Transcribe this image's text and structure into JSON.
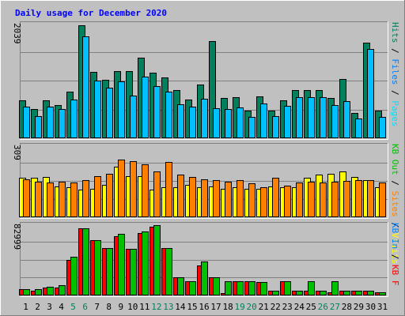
{
  "window": {
    "title": "Daily usage for December 2020"
  },
  "colors": {
    "bg": "#c0c0c0",
    "title": "#0000ff",
    "hits": "#00805c",
    "files": "#00c0ff",
    "pages": "#00e0ff",
    "visits": "#ffff00",
    "sites": "#ff8000",
    "kb_in": "#0080ff",
    "kb_out": "#00c000",
    "kb_f": "#ff0000",
    "day_weekday": "#000000",
    "day_weekend": "#00805c"
  },
  "chart_data": [
    {
      "type": "bar",
      "panel": "hits_files_pages",
      "max_label": "2039",
      "ylim": [
        0,
        2039
      ],
      "right_labels": [
        {
          "text": "Pages",
          "color": "#00e0ff"
        },
        {
          "text": " / ",
          "color": "#000000"
        },
        {
          "text": "Files",
          "color": "#0080ff"
        },
        {
          "text": " / ",
          "color": "#000000"
        },
        {
          "text": "Hits",
          "color": "#00805c"
        }
      ],
      "categories": [
        "1",
        "2",
        "3",
        "4",
        "5",
        "6",
        "7",
        "8",
        "9",
        "10",
        "11",
        "12",
        "13",
        "14",
        "15",
        "16",
        "17",
        "18",
        "19",
        "20",
        "21",
        "22",
        "23",
        "24",
        "25",
        "26",
        "27",
        "28",
        "29",
        "30",
        "31"
      ],
      "series": [
        {
          "name": "Hits",
          "color": "#00805c",
          "values": [
            680,
            520,
            680,
            600,
            830,
            2020,
            1190,
            1050,
            1200,
            1200,
            1450,
            1170,
            1090,
            860,
            700,
            960,
            1740,
            720,
            740,
            500,
            750,
            500,
            680,
            860,
            870,
            860,
            720,
            1060,
            460,
            1720,
            500
          ]
        },
        {
          "name": "Files",
          "color": "#00c0ff",
          "values": [
            560,
            400,
            560,
            530,
            690,
            1820,
            1040,
            900,
            1020,
            770,
            1110,
            940,
            840,
            610,
            570,
            710,
            540,
            530,
            550,
            380,
            630,
            400,
            580,
            730,
            740,
            740,
            590,
            660,
            350,
            1600,
            380
          ]
        }
      ]
    },
    {
      "type": "bar",
      "panel": "visits_sites",
      "max_label": "309",
      "ylim": [
        0,
        309
      ],
      "right_labels": [
        {
          "text": "Visits",
          "color": "#ffff00"
        },
        {
          "text": " / ",
          "color": "#000000"
        },
        {
          "text": "Sites",
          "color": "#ff8000"
        },
        {
          "text": " / ",
          "color": "#000000"
        },
        {
          "text": "KB Out",
          "color": "#00c000"
        }
      ],
      "categories": [
        "1",
        "2",
        "3",
        "4",
        "5",
        "6",
        "7",
        "8",
        "9",
        "10",
        "11",
        "12",
        "13",
        "14",
        "15",
        "16",
        "17",
        "18",
        "19",
        "20",
        "21",
        "22",
        "23",
        "24",
        "25",
        "26",
        "27",
        "28",
        "29",
        "30",
        "31"
      ],
      "series": [
        {
          "name": "Visits",
          "color": "#ffff00",
          "values": [
            170,
            170,
            175,
            135,
            130,
            120,
            125,
            140,
            220,
            180,
            180,
            120,
            130,
            130,
            140,
            130,
            135,
            125,
            130,
            123,
            122,
            135,
            130,
            130,
            170,
            185,
            190,
            200,
            175,
            160,
            130
          ]
        },
        {
          "name": "Sites",
          "color": "#ff8000",
          "values": [
            165,
            155,
            150,
            155,
            150,
            160,
            180,
            190,
            250,
            245,
            230,
            200,
            240,
            185,
            175,
            165,
            160,
            155,
            160,
            148,
            130,
            170,
            138,
            150,
            155,
            150,
            155,
            158,
            160,
            162,
            150
          ]
        }
      ]
    },
    {
      "type": "bar",
      "panel": "kb_in_f",
      "max_label": "82999",
      "ylim": [
        0,
        82999
      ],
      "right_labels": [
        {
          "text": "KB F",
          "color": "#ff0000"
        },
        {
          "text": " / ",
          "color": "#000000"
        },
        {
          "text": "KB In",
          "color": "#0080ff"
        }
      ],
      "categories": [
        "1",
        "2",
        "3",
        "4",
        "5",
        "6",
        "7",
        "8",
        "9",
        "10",
        "11",
        "12",
        "13",
        "14",
        "15",
        "16",
        "17",
        "18",
        "19",
        "20",
        "21",
        "22",
        "23",
        "24",
        "25",
        "26",
        "27",
        "28",
        "29",
        "30",
        "31"
      ],
      "series": [
        {
          "name": "KB F",
          "color": "#ff0000",
          "values": [
            7000,
            6000,
            9000,
            9000,
            42000,
            79000,
            65000,
            56000,
            70000,
            55000,
            74000,
            81000,
            56000,
            21000,
            17000,
            35000,
            21000,
            3000,
            17000,
            17000,
            16000,
            6000,
            17000,
            6000,
            6000,
            6000,
            4000,
            6000,
            6000,
            6000,
            4000
          ]
        },
        {
          "name": "KB Out",
          "color": "#00c000",
          "values": [
            7000,
            7000,
            10000,
            12000,
            46000,
            79000,
            65000,
            56000,
            73000,
            55000,
            76000,
            82999,
            56000,
            21000,
            17000,
            40000,
            21000,
            17000,
            17000,
            17000,
            16000,
            6000,
            17000,
            6000,
            17000,
            6000,
            17000,
            6000,
            6000,
            6000,
            4000
          ]
        }
      ]
    }
  ],
  "days": [
    {
      "label": "1",
      "weekend": false
    },
    {
      "label": "2",
      "weekend": false
    },
    {
      "label": "3",
      "weekend": false
    },
    {
      "label": "4",
      "weekend": false
    },
    {
      "label": "5",
      "weekend": true
    },
    {
      "label": "6",
      "weekend": true
    },
    {
      "label": "7",
      "weekend": false
    },
    {
      "label": "8",
      "weekend": false
    },
    {
      "label": "9",
      "weekend": false
    },
    {
      "label": "10",
      "weekend": false
    },
    {
      "label": "11",
      "weekend": false
    },
    {
      "label": "12",
      "weekend": true
    },
    {
      "label": "13",
      "weekend": true
    },
    {
      "label": "14",
      "weekend": false
    },
    {
      "label": "15",
      "weekend": false
    },
    {
      "label": "16",
      "weekend": false
    },
    {
      "label": "17",
      "weekend": false
    },
    {
      "label": "18",
      "weekend": false
    },
    {
      "label": "19",
      "weekend": true
    },
    {
      "label": "20",
      "weekend": true
    },
    {
      "label": "21",
      "weekend": false
    },
    {
      "label": "22",
      "weekend": false
    },
    {
      "label": "23",
      "weekend": false
    },
    {
      "label": "24",
      "weekend": false
    },
    {
      "label": "25",
      "weekend": false
    },
    {
      "label": "26",
      "weekend": true
    },
    {
      "label": "27",
      "weekend": true
    },
    {
      "label": "28",
      "weekend": false
    },
    {
      "label": "29",
      "weekend": false
    },
    {
      "label": "30",
      "weekend": false
    },
    {
      "label": "31",
      "weekend": false
    }
  ]
}
